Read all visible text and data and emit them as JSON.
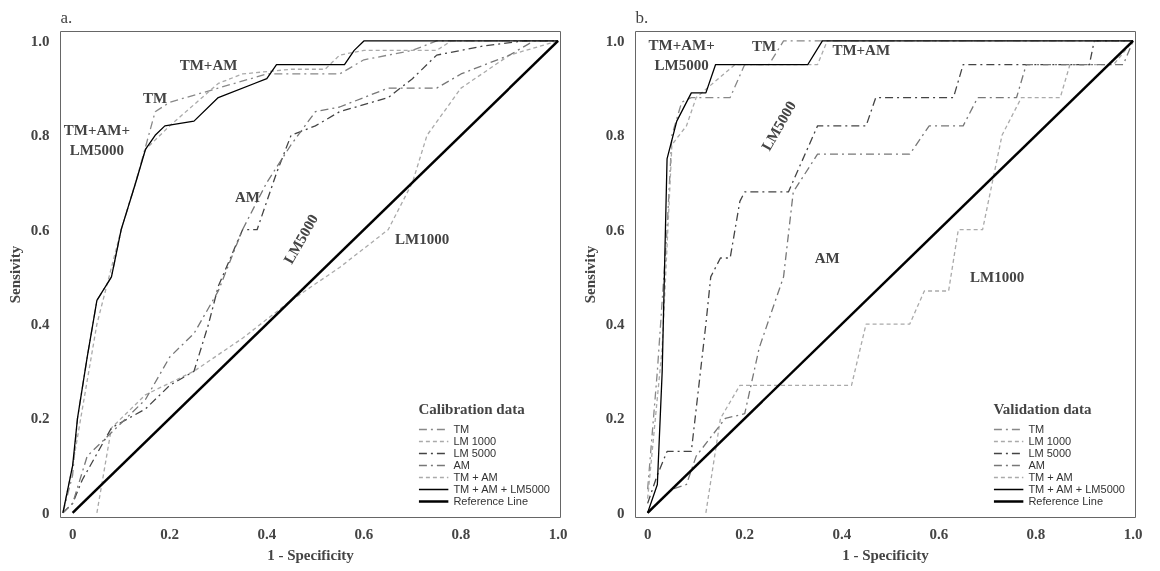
{
  "chart_data": [
    {
      "type": "line",
      "title": "a.",
      "xlabel": "1 - Specificity",
      "ylabel": "Sensivity",
      "legend_title": "Calibration data",
      "legend": "bottom right",
      "grid": false,
      "xlim": [
        -0.025,
        1.005
      ],
      "ylim": [
        -0.01,
        1.02
      ],
      "xticks": [
        0,
        0.2,
        0.4,
        0.6,
        0.8,
        {
          "value": 1,
          "label": "1.0"
        }
      ],
      "yticks": [
        0,
        0.2,
        0.4,
        0.6,
        0.8,
        {
          "value": 1,
          "label": "1.0"
        }
      ],
      "series": [
        {
          "name": "TM",
          "color": "#888888",
          "line_style": "dashed",
          "x": [
            -0.02,
            0,
            0.01,
            0.03,
            0.05,
            0.08,
            0.1,
            0.13,
            0.17,
            0.2,
            0.3,
            0.4,
            0.55,
            0.6,
            0.7,
            0.75,
            1
          ],
          "values": [
            0,
            0.08,
            0.2,
            0.33,
            0.45,
            0.5,
            0.6,
            0.7,
            0.85,
            0.87,
            0.9,
            0.93,
            0.93,
            0.96,
            0.98,
            1,
            1
          ]
        },
        {
          "name": "LM 1000",
          "color": "#aaaaaa",
          "line_style": "dotted",
          "x": [
            0.05,
            0.08,
            0.15,
            0.25,
            0.35,
            0.45,
            0.55,
            0.65,
            0.7,
            0.73,
            0.8,
            0.9,
            1
          ],
          "values": [
            0,
            0.18,
            0.25,
            0.3,
            0.37,
            0.45,
            0.52,
            0.6,
            0.7,
            0.8,
            0.9,
            0.97,
            1
          ]
        },
        {
          "name": "LM 5000",
          "color": "#444444",
          "line_style": "dashed",
          "x": [
            -0.02,
            0,
            0.02,
            0.08,
            0.15,
            0.2,
            0.25,
            0.28,
            0.3,
            0.35,
            0.38,
            0.42,
            0.45,
            0.5,
            0.55,
            0.65,
            0.7,
            0.75,
            0.85,
            0.93,
            1
          ],
          "values": [
            0,
            0.02,
            0.07,
            0.18,
            0.22,
            0.27,
            0.3,
            0.4,
            0.48,
            0.6,
            0.6,
            0.72,
            0.8,
            0.82,
            0.85,
            0.88,
            0.92,
            0.97,
            0.99,
            1,
            1
          ]
        },
        {
          "name": "AM",
          "color": "#777777",
          "line_style": "dashed",
          "x": [
            -0.02,
            0,
            0.03,
            0.08,
            0.15,
            0.2,
            0.25,
            0.3,
            0.35,
            0.4,
            0.45,
            0.5,
            0.55,
            0.6,
            0.65,
            0.75,
            0.8,
            0.9,
            0.95,
            1
          ],
          "values": [
            0,
            0.02,
            0.12,
            0.17,
            0.24,
            0.33,
            0.38,
            0.47,
            0.6,
            0.7,
            0.78,
            0.85,
            0.86,
            0.88,
            0.9,
            0.9,
            0.93,
            0.97,
            1,
            1
          ]
        },
        {
          "name": "TM + AM",
          "color": "#aaaaaa",
          "line_style": "dotted",
          "x": [
            -0.02,
            0,
            0.02,
            0.05,
            0.1,
            0.15,
            0.2,
            0.3,
            0.35,
            0.45,
            0.52,
            0.55,
            0.6,
            0.75,
            0.78,
            1
          ],
          "values": [
            0,
            0.1,
            0.22,
            0.4,
            0.6,
            0.77,
            0.82,
            0.91,
            0.93,
            0.94,
            0.94,
            0.97,
            0.98,
            0.98,
            1,
            1
          ]
        },
        {
          "name": "TM + AM + LM5000",
          "color": "#000000",
          "line_style": "solid",
          "x": [
            -0.02,
            0,
            0.01,
            0.03,
            0.05,
            0.08,
            0.1,
            0.13,
            0.15,
            0.17,
            0.19,
            0.25,
            0.3,
            0.4,
            0.42,
            0.56,
            0.58,
            0.6,
            1
          ],
          "values": [
            0,
            0.1,
            0.2,
            0.33,
            0.45,
            0.5,
            0.6,
            0.7,
            0.77,
            0.8,
            0.82,
            0.83,
            0.88,
            0.92,
            0.95,
            0.95,
            0.98,
            1,
            1
          ]
        },
        {
          "name": "Reference Line",
          "color": "#000000",
          "line_style": "solid",
          "x": [
            0,
            1
          ],
          "values": [
            0,
            1
          ]
        }
      ],
      "annotations": [
        "TM+AM",
        "TM",
        "TM+AM+\nLM5000",
        "AM",
        "LM5000",
        "LM1000"
      ]
    },
    {
      "type": "line",
      "title": "b.",
      "xlabel": "1 - Specificity",
      "ylabel": "Sensivity",
      "legend_title": "Validation data",
      "legend": "bottom right",
      "grid": false,
      "xlim": [
        -0.025,
        1.005
      ],
      "ylim": [
        -0.01,
        1.02
      ],
      "xticks": [
        0,
        0.2,
        0.4,
        0.6,
        0.8,
        {
          "value": 1,
          "label": "1.0"
        }
      ],
      "yticks": [
        0,
        0.2,
        0.4,
        0.6,
        0.8,
        {
          "value": 1,
          "label": "1.0"
        }
      ],
      "series": [
        {
          "name": "TM",
          "color": "#888888",
          "line_style": "dashed",
          "x": [
            0,
            0.02,
            0.04,
            0.05,
            0.07,
            0.09,
            0.17,
            0.2,
            0.25,
            0.28,
            1
          ],
          "values": [
            0.05,
            0.3,
            0.6,
            0.8,
            0.87,
            0.88,
            0.88,
            0.95,
            0.95,
            1,
            1
          ]
        },
        {
          "name": "LM 1000",
          "color": "#aaaaaa",
          "line_style": "dotted",
          "x": [
            0.12,
            0.15,
            0.19,
            0.42,
            0.45,
            0.54,
            0.57,
            0.62,
            0.64,
            0.69,
            0.73,
            0.77,
            0.85,
            0.87,
            0.96,
            1
          ],
          "values": [
            0,
            0.2,
            0.27,
            0.27,
            0.4,
            0.4,
            0.47,
            0.47,
            0.6,
            0.6,
            0.8,
            0.88,
            0.88,
            0.95,
            0.95,
            1
          ]
        },
        {
          "name": "LM 5000",
          "color": "#444444",
          "line_style": "dashed",
          "x": [
            0,
            0.02,
            0.04,
            0.09,
            0.12,
            0.13,
            0.15,
            0.17,
            0.19,
            0.2,
            0.29,
            0.35,
            0.45,
            0.47,
            0.63,
            0.65,
            0.91,
            0.92,
            1
          ],
          "values": [
            0.02,
            0.08,
            0.13,
            0.13,
            0.4,
            0.5,
            0.54,
            0.54,
            0.66,
            0.68,
            0.68,
            0.82,
            0.82,
            0.88,
            0.88,
            0.95,
            0.95,
            1,
            1
          ]
        },
        {
          "name": "AM",
          "color": "#777777",
          "line_style": "dashed",
          "x": [
            0,
            0.05,
            0.08,
            0.1,
            0.16,
            0.2,
            0.23,
            0.28,
            0.3,
            0.35,
            0.54,
            0.58,
            0.65,
            0.68,
            0.76,
            0.78,
            0.98,
            1
          ],
          "values": [
            0,
            0.05,
            0.06,
            0.12,
            0.2,
            0.21,
            0.35,
            0.5,
            0.68,
            0.76,
            0.76,
            0.82,
            0.82,
            0.88,
            0.88,
            0.95,
            0.95,
            1
          ]
        },
        {
          "name": "TM + AM",
          "color": "#aaaaaa",
          "line_style": "dotted",
          "x": [
            0,
            0.03,
            0.05,
            0.08,
            0.1,
            0.18,
            0.35,
            0.37,
            1
          ],
          "values": [
            0.03,
            0.35,
            0.78,
            0.82,
            0.88,
            0.95,
            0.95,
            1,
            1
          ]
        },
        {
          "name": "TM + AM + LM5000",
          "color": "#000000",
          "line_style": "solid",
          "x": [
            0,
            0.02,
            0.03,
            0.04,
            0.06,
            0.09,
            0.12,
            0.14,
            0.33,
            0.36,
            1
          ],
          "values": [
            0,
            0.06,
            0.3,
            0.75,
            0.83,
            0.89,
            0.89,
            0.95,
            0.95,
            1,
            1
          ]
        },
        {
          "name": "Reference Line",
          "color": "#000000",
          "line_style": "solid",
          "x": [
            0,
            1
          ],
          "values": [
            0,
            1
          ]
        }
      ],
      "annotations": [
        "TM+AM+\nLM5000",
        "TM",
        "TM+AM",
        "LM5000",
        "AM",
        "LM1000"
      ]
    }
  ]
}
